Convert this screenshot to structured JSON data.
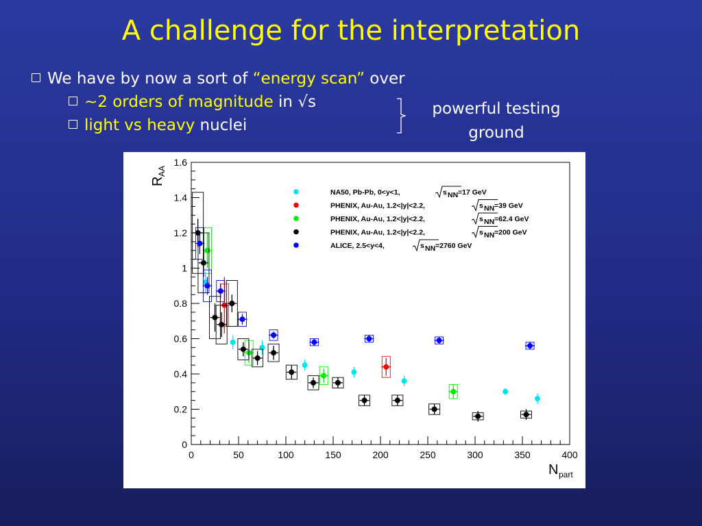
{
  "slide": {
    "title": "A challenge for the interpretation",
    "bullets": {
      "main": {
        "before": "We have by now a sort of ",
        "highlight": "“energy scan”",
        "after": " over"
      },
      "sub1": {
        "highlight": "~2 orders of magnitude",
        "after": " in √s"
      },
      "sub2": {
        "highlight": "light vs heavy",
        "after": " nuclei"
      }
    },
    "aside_line1": "powerful testing",
    "aside_line2": "ground",
    "colors": {
      "title": "#ffff00",
      "highlight": "#ffff00",
      "text": "#ffffff",
      "background": "#222b86"
    },
    "icons": {
      "bullet": "hollow-square-bullet-icon",
      "brace": "right-brace-icon"
    }
  },
  "chart_data": {
    "type": "scatter",
    "xlabel": "N",
    "xlabel_sub": "part",
    "ylabel": "R",
    "ylabel_sub": "AA",
    "xlim": [
      0,
      400
    ],
    "ylim": [
      0,
      1.6
    ],
    "x_ticks": [
      "0",
      "50",
      "100",
      "150",
      "200",
      "250",
      "300",
      "350",
      "400"
    ],
    "y_ticks": [
      "0",
      "0.2",
      "0.4",
      "0.6",
      "0.8",
      "1",
      "1.2",
      "1.4",
      "1.6"
    ],
    "legend_position": "top-right",
    "series": [
      {
        "name": "NA50, Pb-Pb, 0<y<1,",
        "energy": "=17 GeV",
        "color": "#00e5ee",
        "points": [
          {
            "x": 15,
            "y": 0.92,
            "err": 0.06,
            "sys": 0
          },
          {
            "x": 44,
            "y": 0.58,
            "err": 0.04,
            "sys": 0
          },
          {
            "x": 75,
            "y": 0.55,
            "err": 0.04,
            "sys": 0
          },
          {
            "x": 120,
            "y": 0.45,
            "err": 0.03,
            "sys": 0
          },
          {
            "x": 172,
            "y": 0.41,
            "err": 0.03,
            "sys": 0
          },
          {
            "x": 225,
            "y": 0.36,
            "err": 0.03,
            "sys": 0
          },
          {
            "x": 332,
            "y": 0.3,
            "err": 0.02,
            "sys": 0
          },
          {
            "x": 366,
            "y": 0.26,
            "err": 0.03,
            "sys": 0
          }
        ]
      },
      {
        "name": "PHENIX, Au-Au, 1.2<|y|<2.2,",
        "energy": "=39 GeV",
        "color": "#ff0000",
        "points": [
          {
            "x": 35,
            "y": 0.79,
            "err": 0.16,
            "sys": 0.12
          },
          {
            "x": 206,
            "y": 0.44,
            "err": 0.05,
            "sys": 0.06
          }
        ]
      },
      {
        "name": "PHENIX, Au-Au, 1.2<|y|<2.2,",
        "energy": "=62.4 GeV",
        "color": "#00ee00",
        "points": [
          {
            "x": 17,
            "y": 1.1,
            "err": 0.1,
            "sys": 0.13
          },
          {
            "x": 61,
            "y": 0.52,
            "err": 0.06,
            "sys": 0.07
          },
          {
            "x": 140,
            "y": 0.39,
            "err": 0.04,
            "sys": 0.05
          },
          {
            "x": 277,
            "y": 0.3,
            "err": 0.04,
            "sys": 0.04
          }
        ]
      },
      {
        "name": "PHENIX, Au-Au, 1.2<|y|<2.2,",
        "energy": "=200 GeV",
        "color": "#000000",
        "points": [
          {
            "x": 7,
            "y": 1.2,
            "err": 0.08,
            "sys": 0.23
          },
          {
            "x": 13,
            "y": 1.03,
            "err": 0.08,
            "sys": 0.17
          },
          {
            "x": 25,
            "y": 0.72,
            "err": 0.08,
            "sys": 0.12
          },
          {
            "x": 32,
            "y": 0.68,
            "err": 0.07,
            "sys": 0.11
          },
          {
            "x": 43,
            "y": 0.8,
            "err": 0.05,
            "sys": 0.13
          },
          {
            "x": 55,
            "y": 0.54,
            "err": 0.04,
            "sys": 0.06
          },
          {
            "x": 70,
            "y": 0.49,
            "err": 0.04,
            "sys": 0.05
          },
          {
            "x": 87,
            "y": 0.52,
            "err": 0.04,
            "sys": 0.05
          },
          {
            "x": 106,
            "y": 0.41,
            "err": 0.04,
            "sys": 0.04
          },
          {
            "x": 129,
            "y": 0.35,
            "err": 0.03,
            "sys": 0.04
          },
          {
            "x": 155,
            "y": 0.35,
            "err": 0.03,
            "sys": 0.03
          },
          {
            "x": 183,
            "y": 0.25,
            "err": 0.03,
            "sys": 0.03
          },
          {
            "x": 218,
            "y": 0.25,
            "err": 0.03,
            "sys": 0.03
          },
          {
            "x": 257,
            "y": 0.2,
            "err": 0.03,
            "sys": 0.03
          },
          {
            "x": 303,
            "y": 0.16,
            "err": 0.03,
            "sys": 0.02
          },
          {
            "x": 354,
            "y": 0.17,
            "err": 0.03,
            "sys": 0.02
          }
        ]
      },
      {
        "name": "ALICE, 2.5<y<4,",
        "energy": "=2760 GeV",
        "color": "#0000ff",
        "points": [
          {
            "x": 9,
            "y": 1.14,
            "err": 0.06,
            "sys": 0.09
          },
          {
            "x": 17,
            "y": 0.9,
            "err": 0.05,
            "sys": 0.09
          },
          {
            "x": 31,
            "y": 0.87,
            "err": 0.04,
            "sys": 0.06
          },
          {
            "x": 54,
            "y": 0.71,
            "err": 0.03,
            "sys": 0.04
          },
          {
            "x": 87,
            "y": 0.62,
            "err": 0.02,
            "sys": 0.03
          },
          {
            "x": 130,
            "y": 0.58,
            "err": 0.02,
            "sys": 0.02
          },
          {
            "x": 188,
            "y": 0.6,
            "err": 0.02,
            "sys": 0.02
          },
          {
            "x": 262,
            "y": 0.59,
            "err": 0.02,
            "sys": 0.02
          },
          {
            "x": 358,
            "y": 0.56,
            "err": 0.02,
            "sys": 0.02
          }
        ]
      }
    ]
  }
}
